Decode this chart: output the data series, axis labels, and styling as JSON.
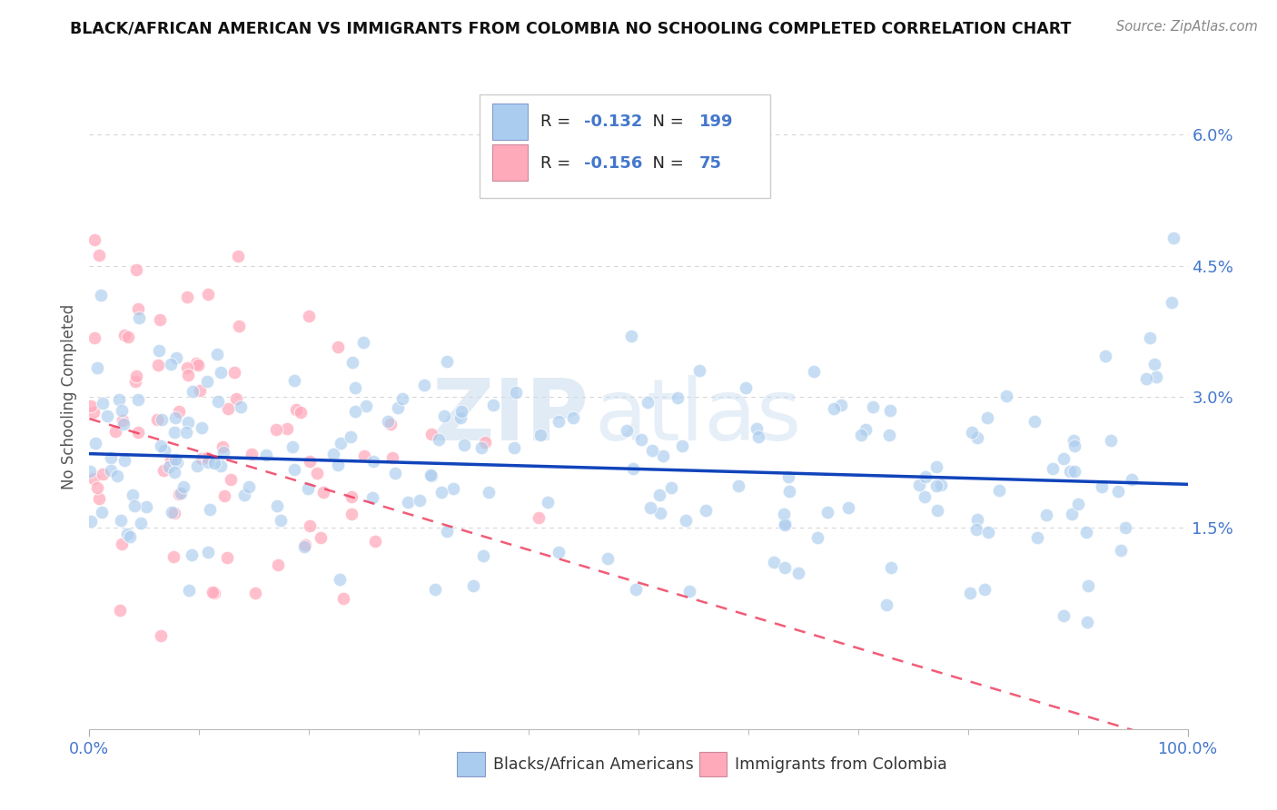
{
  "title": "BLACK/AFRICAN AMERICAN VS IMMIGRANTS FROM COLOMBIA NO SCHOOLING COMPLETED CORRELATION CHART",
  "source": "Source: ZipAtlas.com",
  "ylabel": "No Schooling Completed",
  "x_tick_labels": [
    "0.0%",
    "100.0%"
  ],
  "y_tick_labels": [
    "1.5%",
    "3.0%",
    "4.5%",
    "6.0%"
  ],
  "y_tick_values": [
    0.015,
    0.03,
    0.045,
    0.06
  ],
  "xlim": [
    0.0,
    1.0
  ],
  "ylim": [
    -0.008,
    0.068
  ],
  "blue_color": "#AACCEE",
  "pink_color": "#FFAABB",
  "blue_line_color": "#1144BB",
  "pink_line_color": "#EE3355",
  "legend_blue_label": "Blacks/African Americans",
  "legend_pink_label": "Immigrants from Colombia",
  "r_blue": -0.132,
  "n_blue": 199,
  "r_pink": -0.156,
  "n_pink": 75,
  "watermark_zip": "ZIP",
  "watermark_atlas": "atlas",
  "background_color": "#FFFFFF",
  "grid_color": "#CCCCCC",
  "title_color": "#111111",
  "tick_label_color": "#4477CC",
  "axis_label_color": "#555555",
  "source_color": "#888888",
  "seed": 42,
  "blue_line_start_y": 0.0235,
  "blue_line_end_y": 0.02,
  "pink_line_start_y": 0.0275,
  "pink_line_end_y": -0.01
}
